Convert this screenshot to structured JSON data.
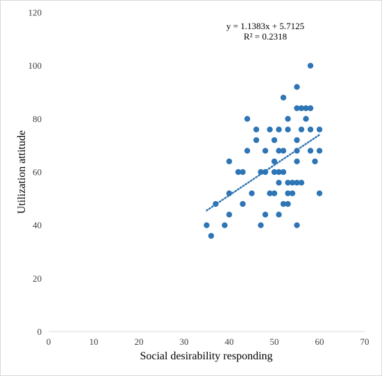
{
  "chart_data": {
    "type": "scatter",
    "xlabel": "Social desirability responding",
    "ylabel": "Utilization attitude",
    "xlim": [
      0,
      70
    ],
    "ylim": [
      0,
      120
    ],
    "xticks": [
      0,
      10,
      20,
      30,
      40,
      50,
      60,
      70
    ],
    "yticks": [
      0,
      20,
      40,
      60,
      80,
      100,
      120
    ],
    "grid": false,
    "marker_color": "#2E75B6",
    "trendline": {
      "style": "dotted",
      "color": "#2E75B6",
      "slope": 1.1383,
      "intercept": 5.7125,
      "x_range": [
        35,
        60
      ],
      "equation_label": "y = 1.1383x + 5.7125",
      "r2_label": "R² = 0.2318"
    },
    "points": [
      {
        "x": 35,
        "y": 40
      },
      {
        "x": 36,
        "y": 36
      },
      {
        "x": 37,
        "y": 48
      },
      {
        "x": 39,
        "y": 40
      },
      {
        "x": 40,
        "y": 64
      },
      {
        "x": 40,
        "y": 52
      },
      {
        "x": 40,
        "y": 44
      },
      {
        "x": 42,
        "y": 60
      },
      {
        "x": 43,
        "y": 60
      },
      {
        "x": 43,
        "y": 48
      },
      {
        "x": 44,
        "y": 80
      },
      {
        "x": 44,
        "y": 68
      },
      {
        "x": 45,
        "y": 52
      },
      {
        "x": 46,
        "y": 76
      },
      {
        "x": 46,
        "y": 72
      },
      {
        "x": 47,
        "y": 60
      },
      {
        "x": 47,
        "y": 40
      },
      {
        "x": 48,
        "y": 68
      },
      {
        "x": 48,
        "y": 60
      },
      {
        "x": 48,
        "y": 44
      },
      {
        "x": 49,
        "y": 76
      },
      {
        "x": 49,
        "y": 52
      },
      {
        "x": 50,
        "y": 72
      },
      {
        "x": 50,
        "y": 64
      },
      {
        "x": 50,
        "y": 60
      },
      {
        "x": 50,
        "y": 52
      },
      {
        "x": 51,
        "y": 76
      },
      {
        "x": 51,
        "y": 68
      },
      {
        "x": 51,
        "y": 60
      },
      {
        "x": 51,
        "y": 56
      },
      {
        "x": 51,
        "y": 44
      },
      {
        "x": 52,
        "y": 88
      },
      {
        "x": 52,
        "y": 68
      },
      {
        "x": 52,
        "y": 60
      },
      {
        "x": 52,
        "y": 48
      },
      {
        "x": 53,
        "y": 80
      },
      {
        "x": 53,
        "y": 76
      },
      {
        "x": 53,
        "y": 56
      },
      {
        "x": 53,
        "y": 52
      },
      {
        "x": 53,
        "y": 48
      },
      {
        "x": 54,
        "y": 56
      },
      {
        "x": 54,
        "y": 52
      },
      {
        "x": 55,
        "y": 92
      },
      {
        "x": 55,
        "y": 84
      },
      {
        "x": 55,
        "y": 72
      },
      {
        "x": 55,
        "y": 68
      },
      {
        "x": 55,
        "y": 64
      },
      {
        "x": 55,
        "y": 56
      },
      {
        "x": 55,
        "y": 40
      },
      {
        "x": 56,
        "y": 84
      },
      {
        "x": 56,
        "y": 76
      },
      {
        "x": 56,
        "y": 56
      },
      {
        "x": 57,
        "y": 84
      },
      {
        "x": 57,
        "y": 80
      },
      {
        "x": 58,
        "y": 100
      },
      {
        "x": 58,
        "y": 84
      },
      {
        "x": 58,
        "y": 76
      },
      {
        "x": 58,
        "y": 68
      },
      {
        "x": 59,
        "y": 64
      },
      {
        "x": 60,
        "y": 76
      },
      {
        "x": 60,
        "y": 68
      },
      {
        "x": 60,
        "y": 52
      }
    ]
  }
}
